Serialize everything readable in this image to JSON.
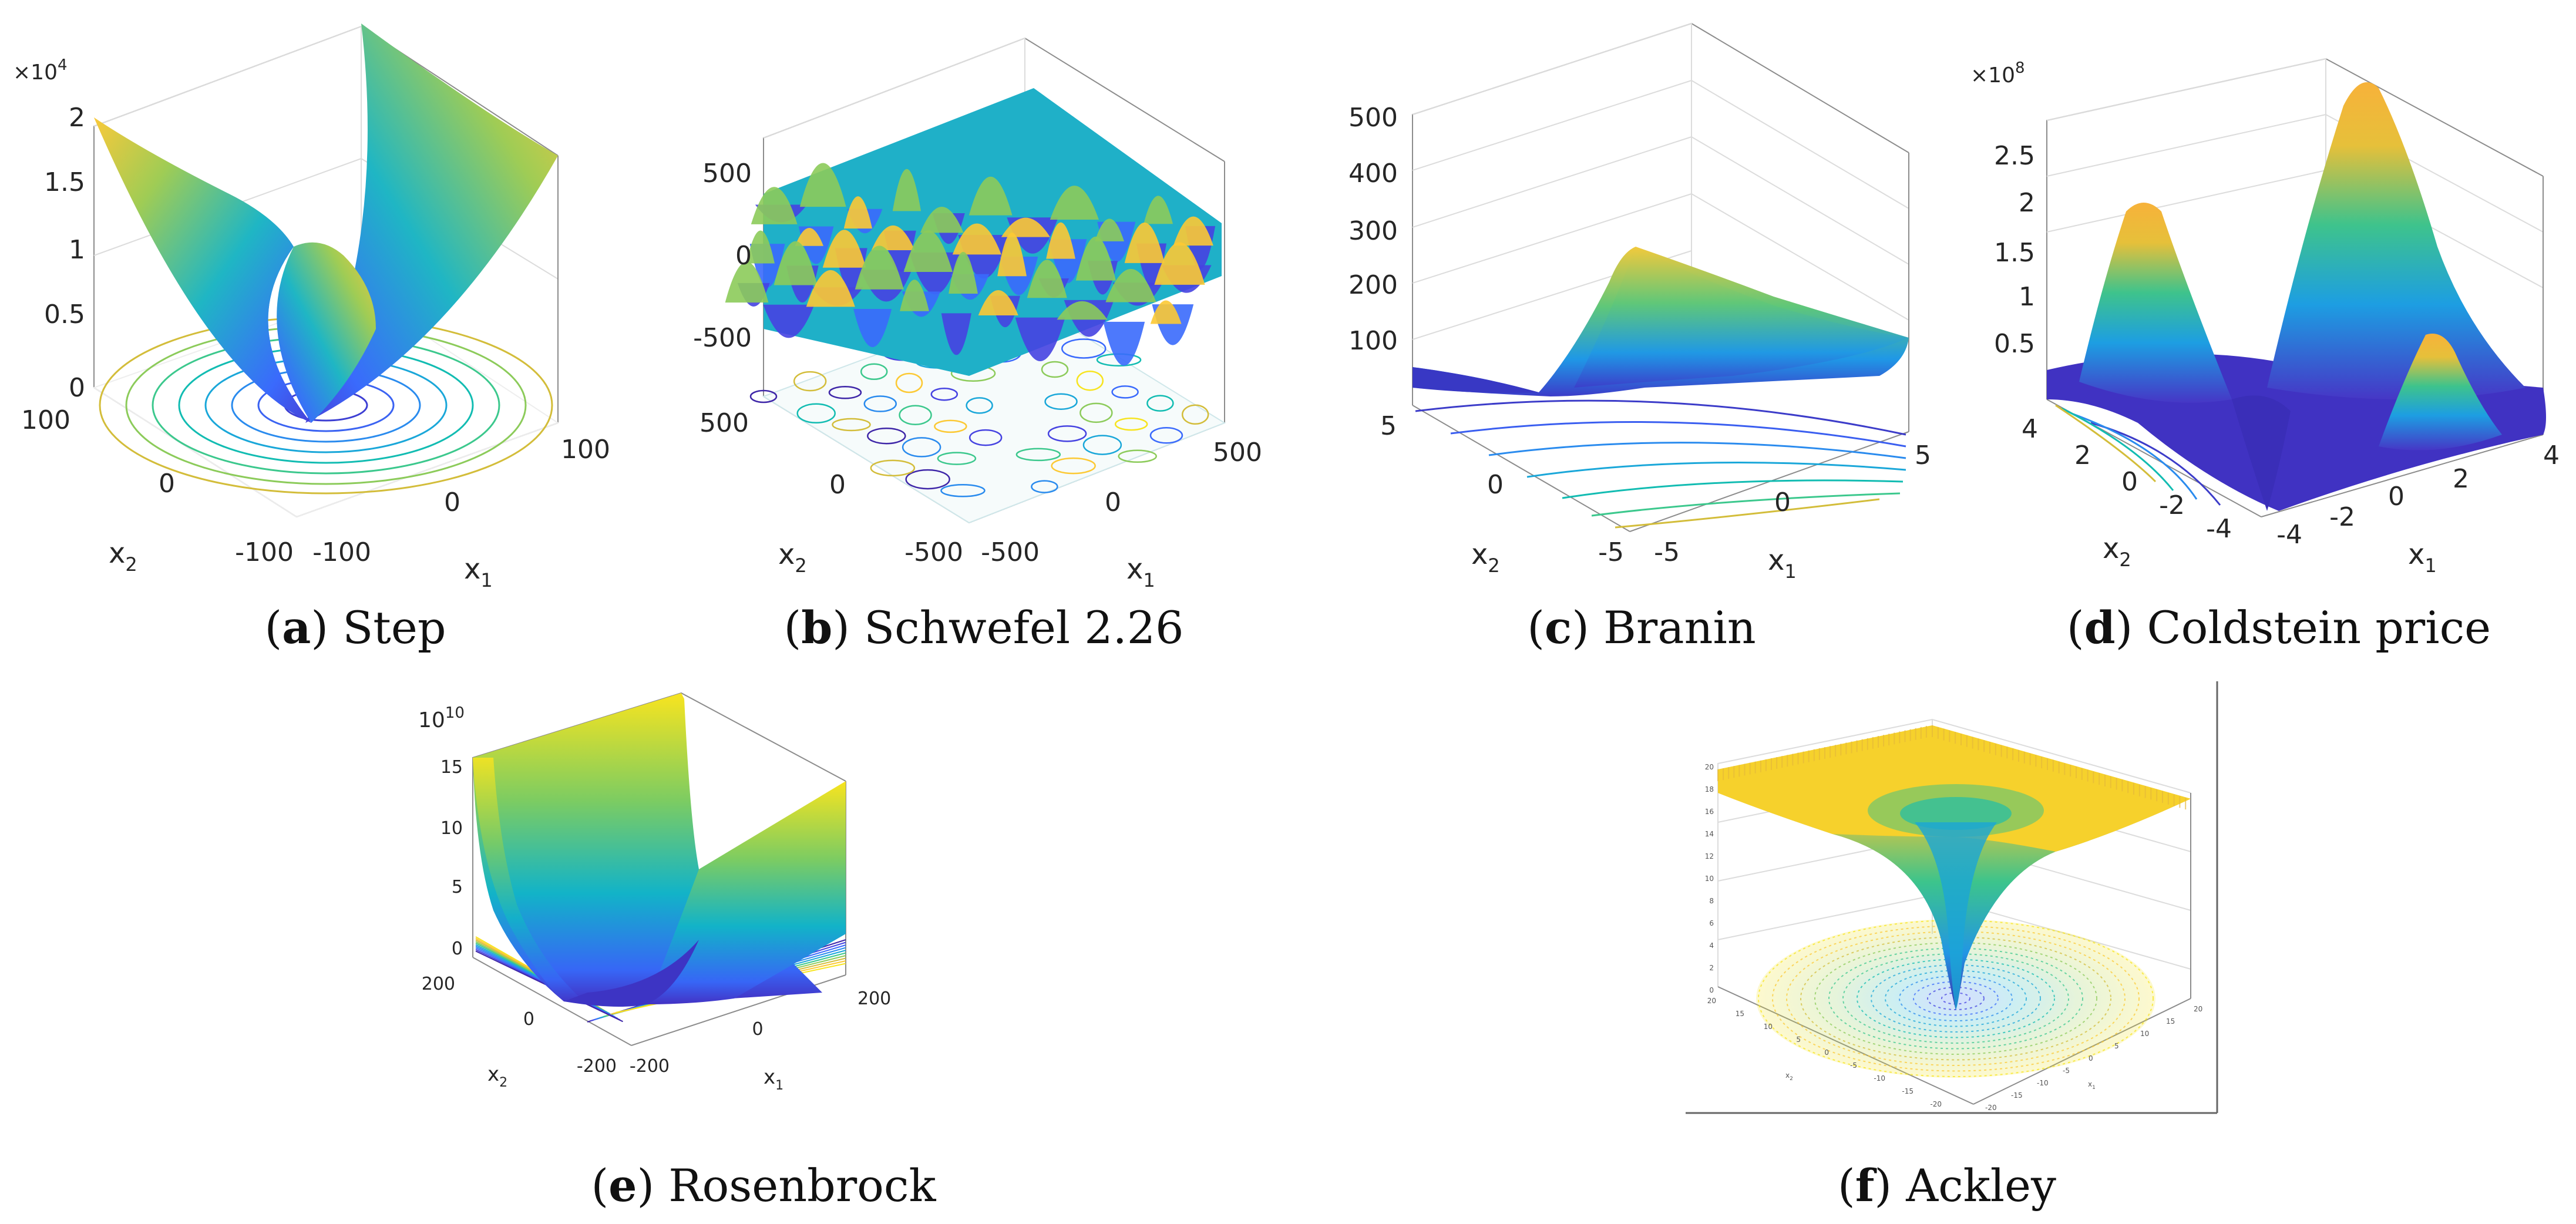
{
  "chart_data": [
    {
      "type": "surface",
      "panel": "a",
      "caption_letter": "a",
      "caption_name": "Step",
      "zlabel_multiplier_base": "×10",
      "zlabel_multiplier_exp": "4",
      "zticks": [
        "2",
        "1.5",
        "1",
        "0.5",
        "0"
      ],
      "x1_ticks": [
        "-100",
        "0",
        "100"
      ],
      "x2_ticks": [
        "100",
        "0",
        "-100"
      ],
      "xlabel_base": "x",
      "xlabel_sub": "1",
      "ylabel_base": "x",
      "ylabel_sub": "2",
      "zlim": [
        0,
        20000
      ],
      "x1_range": [
        -100,
        100
      ],
      "x2_range": [
        -100,
        100
      ],
      "contour_levels": 10
    },
    {
      "type": "surface",
      "panel": "b",
      "caption_letter": "b",
      "caption_name": "Schwefel 2.26",
      "zticks": [
        "500",
        "0",
        "-500"
      ],
      "x1_ticks": [
        "-500",
        "0",
        "500"
      ],
      "x2_ticks": [
        "500",
        "0",
        "-500"
      ],
      "xlabel_base": "x",
      "xlabel_sub": "1",
      "ylabel_base": "x",
      "ylabel_sub": "2",
      "zlim": [
        -800,
        800
      ],
      "x1_range": [
        -500,
        500
      ],
      "x2_range": [
        -500,
        500
      ]
    },
    {
      "type": "surface",
      "panel": "c",
      "caption_letter": "c",
      "caption_name": "Branin",
      "zticks": [
        "500",
        "400",
        "300",
        "200",
        "100"
      ],
      "x1_ticks": [
        "-5",
        "0",
        "5"
      ],
      "x2_ticks": [
        "5",
        "0",
        "-5"
      ],
      "xlabel_base": "x",
      "xlabel_sub": "1",
      "ylabel_base": "x",
      "ylabel_sub": "2",
      "zlim": [
        0,
        500
      ],
      "x1_range": [
        -5,
        5
      ],
      "x2_range": [
        -5,
        5
      ]
    },
    {
      "type": "surface",
      "panel": "d",
      "caption_letter": "d",
      "caption_name": "Coldstein price",
      "zlabel_multiplier_base": "×10",
      "zlabel_multiplier_exp": "8",
      "zticks": [
        "2.5",
        "2",
        "1.5",
        "1",
        "0.5"
      ],
      "x1_ticks": [
        "-4",
        "-2",
        "0",
        "2",
        "4"
      ],
      "x2_ticks": [
        "4",
        "2",
        "0",
        "-2",
        "-4"
      ],
      "xlabel_base": "x",
      "xlabel_sub": "1",
      "ylabel_base": "x",
      "ylabel_sub": "2",
      "zlim": [
        0,
        300000000
      ],
      "x1_range": [
        -4,
        4
      ],
      "x2_range": [
        -4,
        4
      ]
    },
    {
      "type": "surface",
      "panel": "e",
      "caption_letter": "e",
      "caption_name": "Rosenbrock",
      "zlabel_multiplier_base": "10",
      "zlabel_multiplier_exp": "10",
      "zticks": [
        "15",
        "10",
        "5",
        "0"
      ],
      "x1_ticks": [
        "-200",
        "0",
        "200"
      ],
      "x2_ticks": [
        "200",
        "0",
        "-200"
      ],
      "xlabel_base": "x",
      "xlabel_sub": "1",
      "ylabel_base": "x",
      "ylabel_sub": "2",
      "zlim": [
        0,
        160000000000
      ],
      "x1_range": [
        -200,
        200
      ],
      "x2_range": [
        -200,
        200
      ]
    },
    {
      "type": "surface",
      "panel": "f",
      "caption_letter": "f",
      "caption_name": "Ackley",
      "zticks": [
        "20",
        "18",
        "16",
        "14",
        "12",
        "10",
        "8",
        "6",
        "4",
        "2",
        "0"
      ],
      "x1_ticks": [
        "-20",
        "-15",
        "-10",
        "-5",
        "0",
        "5",
        "10",
        "15",
        "20"
      ],
      "x2_ticks": [
        "20",
        "15",
        "10",
        "5",
        "0",
        "-5",
        "-10",
        "-15",
        "-20"
      ],
      "xlabel_base": "x",
      "xlabel_sub": "1",
      "ylabel_base": "x",
      "ylabel_sub": "2",
      "zlim": [
        0,
        22
      ],
      "x1_range": [
        -20,
        20
      ],
      "x2_range": [
        -20,
        20
      ]
    }
  ],
  "colormap": [
    "#3e26a8",
    "#4643e1",
    "#3a6afc",
    "#2a8bee",
    "#1aa7d9",
    "#12bcb2",
    "#3cc88d",
    "#8ccb5a",
    "#d3bd3a",
    "#fcc934",
    "#f7e41f"
  ],
  "colors": {
    "axis": "#8c8c8c",
    "grid": "#dcdcdc",
    "text": "#262626"
  }
}
